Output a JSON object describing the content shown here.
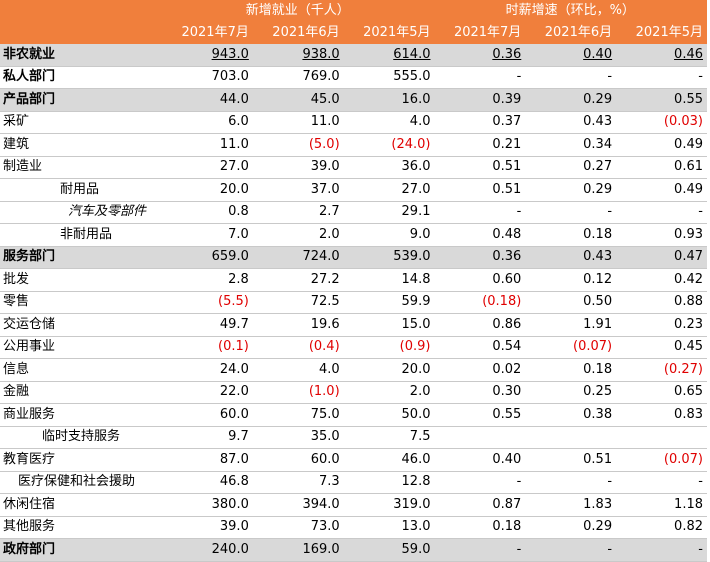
{
  "header": {
    "group_employment": "新增就业（千人）",
    "group_wage": "时薪增速（环比，%）",
    "months": [
      "2021年7月",
      "2021年6月",
      "2021年5月",
      "2021年7月",
      "2021年6月",
      "2021年5月"
    ]
  },
  "rows": [
    {
      "label": "非农就业",
      "style": "grey bold under",
      "indent": "",
      "cells": [
        {
          "v": "943.0",
          "neg": false
        },
        {
          "v": "938.0",
          "neg": false
        },
        {
          "v": "614.0",
          "neg": false
        },
        {
          "v": "0.36",
          "neg": false
        },
        {
          "v": "0.40",
          "neg": false
        },
        {
          "v": "0.46",
          "neg": false
        }
      ]
    },
    {
      "label": "私人部门",
      "style": "bold",
      "indent": "",
      "cells": [
        {
          "v": "703.0",
          "neg": false
        },
        {
          "v": "769.0",
          "neg": false
        },
        {
          "v": "555.0",
          "neg": false
        },
        {
          "v": "-",
          "neg": false
        },
        {
          "v": "-",
          "neg": false
        },
        {
          "v": "-",
          "neg": false
        }
      ]
    },
    {
      "label": "产品部门",
      "style": "grey bold",
      "indent": "",
      "cells": [
        {
          "v": "44.0",
          "neg": false
        },
        {
          "v": "45.0",
          "neg": false
        },
        {
          "v": "16.0",
          "neg": false
        },
        {
          "v": "0.39",
          "neg": false
        },
        {
          "v": "0.29",
          "neg": false
        },
        {
          "v": "0.55",
          "neg": false
        }
      ]
    },
    {
      "label": "采矿",
      "style": "",
      "indent": "",
      "cells": [
        {
          "v": "6.0",
          "neg": false
        },
        {
          "v": "11.0",
          "neg": false
        },
        {
          "v": "4.0",
          "neg": false
        },
        {
          "v": "0.37",
          "neg": false
        },
        {
          "v": "0.43",
          "neg": false
        },
        {
          "v": "(0.03)",
          "neg": true
        }
      ]
    },
    {
      "label": "建筑",
      "style": "",
      "indent": "",
      "cells": [
        {
          "v": "11.0",
          "neg": false
        },
        {
          "v": "(5.0)",
          "neg": true
        },
        {
          "v": "(24.0)",
          "neg": true
        },
        {
          "v": "0.21",
          "neg": false
        },
        {
          "v": "0.34",
          "neg": false
        },
        {
          "v": "0.49",
          "neg": false
        }
      ]
    },
    {
      "label": "制造业",
      "style": "",
      "indent": "",
      "cells": [
        {
          "v": "27.0",
          "neg": false
        },
        {
          "v": "39.0",
          "neg": false
        },
        {
          "v": "36.0",
          "neg": false
        },
        {
          "v": "0.51",
          "neg": false
        },
        {
          "v": "0.27",
          "neg": false
        },
        {
          "v": "0.61",
          "neg": false
        }
      ]
    },
    {
      "label": "耐用品",
      "style": "",
      "indent": "i1",
      "cells": [
        {
          "v": "20.0",
          "neg": false
        },
        {
          "v": "37.0",
          "neg": false
        },
        {
          "v": "27.0",
          "neg": false
        },
        {
          "v": "0.51",
          "neg": false
        },
        {
          "v": "0.29",
          "neg": false
        },
        {
          "v": "0.49",
          "neg": false
        }
      ]
    },
    {
      "label": "汽车及零部件",
      "style": "",
      "indent": "i2",
      "cells": [
        {
          "v": "0.8",
          "neg": false
        },
        {
          "v": "2.7",
          "neg": false
        },
        {
          "v": "29.1",
          "neg": false
        },
        {
          "v": "-",
          "neg": false
        },
        {
          "v": "-",
          "neg": false
        },
        {
          "v": "-",
          "neg": false
        }
      ]
    },
    {
      "label": "非耐用品",
      "style": "",
      "indent": "i1",
      "cells": [
        {
          "v": "7.0",
          "neg": false
        },
        {
          "v": "2.0",
          "neg": false
        },
        {
          "v": "9.0",
          "neg": false
        },
        {
          "v": "0.48",
          "neg": false
        },
        {
          "v": "0.18",
          "neg": false
        },
        {
          "v": "0.93",
          "neg": false
        }
      ]
    },
    {
      "label": "服务部门",
      "style": "grey bold",
      "indent": "",
      "cells": [
        {
          "v": "659.0",
          "neg": false
        },
        {
          "v": "724.0",
          "neg": false
        },
        {
          "v": "539.0",
          "neg": false
        },
        {
          "v": "0.36",
          "neg": false
        },
        {
          "v": "0.43",
          "neg": false
        },
        {
          "v": "0.47",
          "neg": false
        }
      ]
    },
    {
      "label": "批发",
      "style": "",
      "indent": "",
      "cells": [
        {
          "v": "2.8",
          "neg": false
        },
        {
          "v": "27.2",
          "neg": false
        },
        {
          "v": "14.8",
          "neg": false
        },
        {
          "v": "0.60",
          "neg": false
        },
        {
          "v": "0.12",
          "neg": false
        },
        {
          "v": "0.42",
          "neg": false
        }
      ]
    },
    {
      "label": "零售",
      "style": "",
      "indent": "",
      "cells": [
        {
          "v": "(5.5)",
          "neg": true
        },
        {
          "v": "72.5",
          "neg": false
        },
        {
          "v": "59.9",
          "neg": false
        },
        {
          "v": "(0.18)",
          "neg": true
        },
        {
          "v": "0.50",
          "neg": false
        },
        {
          "v": "0.88",
          "neg": false
        }
      ]
    },
    {
      "label": "交运仓储",
      "style": "",
      "indent": "",
      "cells": [
        {
          "v": "49.7",
          "neg": false
        },
        {
          "v": "19.6",
          "neg": false
        },
        {
          "v": "15.0",
          "neg": false
        },
        {
          "v": "0.86",
          "neg": false
        },
        {
          "v": "1.91",
          "neg": false
        },
        {
          "v": "0.23",
          "neg": false
        }
      ]
    },
    {
      "label": "公用事业",
      "style": "",
      "indent": "",
      "cells": [
        {
          "v": "(0.1)",
          "neg": true
        },
        {
          "v": "(0.4)",
          "neg": true
        },
        {
          "v": "(0.9)",
          "neg": true
        },
        {
          "v": "0.54",
          "neg": false
        },
        {
          "v": "(0.07)",
          "neg": true
        },
        {
          "v": "0.45",
          "neg": false
        }
      ]
    },
    {
      "label": "信息",
      "style": "",
      "indent": "",
      "cells": [
        {
          "v": "24.0",
          "neg": false
        },
        {
          "v": "4.0",
          "neg": false
        },
        {
          "v": "20.0",
          "neg": false
        },
        {
          "v": "0.02",
          "neg": false
        },
        {
          "v": "0.18",
          "neg": false
        },
        {
          "v": "(0.27)",
          "neg": true
        }
      ]
    },
    {
      "label": "金融",
      "style": "",
      "indent": "",
      "cells": [
        {
          "v": "22.0",
          "neg": false
        },
        {
          "v": "(1.0)",
          "neg": true
        },
        {
          "v": "2.0",
          "neg": false
        },
        {
          "v": "0.30",
          "neg": false
        },
        {
          "v": "0.25",
          "neg": false
        },
        {
          "v": "0.65",
          "neg": false
        }
      ]
    },
    {
      "label": "商业服务",
      "style": "",
      "indent": "",
      "cells": [
        {
          "v": "60.0",
          "neg": false
        },
        {
          "v": "75.0",
          "neg": false
        },
        {
          "v": "50.0",
          "neg": false
        },
        {
          "v": "0.55",
          "neg": false
        },
        {
          "v": "0.38",
          "neg": false
        },
        {
          "v": "0.83",
          "neg": false
        }
      ]
    },
    {
      "label": "临时支持服务",
      "style": "",
      "indent": "i3",
      "cells": [
        {
          "v": "9.7",
          "neg": false
        },
        {
          "v": "35.0",
          "neg": false
        },
        {
          "v": "7.5",
          "neg": false
        },
        {
          "v": "",
          "neg": false
        },
        {
          "v": "",
          "neg": false
        },
        {
          "v": "",
          "neg": false
        }
      ]
    },
    {
      "label": "教育医疗",
      "style": "",
      "indent": "",
      "cells": [
        {
          "v": "87.0",
          "neg": false
        },
        {
          "v": "60.0",
          "neg": false
        },
        {
          "v": "46.0",
          "neg": false
        },
        {
          "v": "0.40",
          "neg": false
        },
        {
          "v": "0.51",
          "neg": false
        },
        {
          "v": "(0.07)",
          "neg": true
        }
      ]
    },
    {
      "label": "医疗保健和社会援助",
      "style": "",
      "indent": "i4",
      "cells": [
        {
          "v": "46.8",
          "neg": false
        },
        {
          "v": "7.3",
          "neg": false
        },
        {
          "v": "12.8",
          "neg": false
        },
        {
          "v": "-",
          "neg": false
        },
        {
          "v": "-",
          "neg": false
        },
        {
          "v": "-",
          "neg": false
        }
      ]
    },
    {
      "label": "休闲住宿",
      "style": "",
      "indent": "",
      "cells": [
        {
          "v": "380.0",
          "neg": false
        },
        {
          "v": "394.0",
          "neg": false
        },
        {
          "v": "319.0",
          "neg": false
        },
        {
          "v": "0.87",
          "neg": false
        },
        {
          "v": "1.83",
          "neg": false
        },
        {
          "v": "1.18",
          "neg": false
        }
      ]
    },
    {
      "label": "其他服务",
      "style": "",
      "indent": "",
      "cells": [
        {
          "v": "39.0",
          "neg": false
        },
        {
          "v": "73.0",
          "neg": false
        },
        {
          "v": "13.0",
          "neg": false
        },
        {
          "v": "0.18",
          "neg": false
        },
        {
          "v": "0.29",
          "neg": false
        },
        {
          "v": "0.82",
          "neg": false
        }
      ]
    },
    {
      "label": "政府部门",
      "style": "grey bold",
      "indent": "",
      "cells": [
        {
          "v": "240.0",
          "neg": false
        },
        {
          "v": "169.0",
          "neg": false
        },
        {
          "v": "59.0",
          "neg": false
        },
        {
          "v": "-",
          "neg": false
        },
        {
          "v": "-",
          "neg": false
        },
        {
          "v": "-",
          "neg": false
        }
      ]
    }
  ]
}
